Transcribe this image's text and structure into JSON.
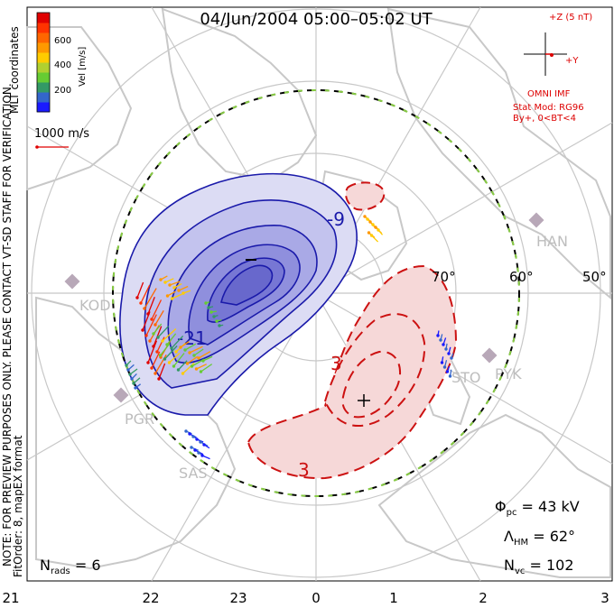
{
  "title": "04/Jun/2004 05:00–05:02 UT",
  "coordinates": "MLT coordinates",
  "colorbar": {
    "label": "Vel [m/s]",
    "ticks": [
      "600",
      "400",
      "200"
    ],
    "colors": [
      "#1a1aff",
      "#3366cc",
      "#339966",
      "#66cc33",
      "#b0d030",
      "#ffcc00",
      "#ff9900",
      "#ff6600",
      "#ff3300",
      "#e00000"
    ]
  },
  "vector_scale": "1000 m/s",
  "watermark": "NOTE: FOR PREVIEW PURPOSES ONLY. PLEASE CONTACT VT-SD STAFF FOR VERIFICATION.",
  "fit_note": "FitOrder: 8, mapEX format",
  "imf": {
    "z_label": "+Z (5 nT)",
    "y_label": "+Y",
    "source": "OMNI IMF",
    "model_line1": "Stat Mod: RG96",
    "model_line2": "By+, 0<BT<4"
  },
  "latitude_labels": [
    "70°",
    "60°",
    "50°"
  ],
  "stations": [
    "HAN",
    "KOD",
    "PYK",
    "STO",
    "PGR",
    "SAS"
  ],
  "contour_labels": [
    "-9",
    "-21",
    "3",
    "3"
  ],
  "stats": {
    "phi_symbol": "Φ",
    "phi_sub": "pc",
    "phi_value": " = 43 kV",
    "lambda_symbol": "Λ",
    "lambda_sub": "HM",
    "lambda_value": " = 62°",
    "nvc_symbol": "N",
    "nvc_sub": "vc",
    "nvc_value": " = 102",
    "nrads_symbol": "N",
    "nrads_sub": "rads",
    "nrads_value": " = 6"
  },
  "mlt_axis": [
    "21",
    "22",
    "23",
    "0",
    "1",
    "2",
    "3"
  ],
  "colors": {
    "negative_cell": "#1a1aaa",
    "positive_cell": "#cc1111",
    "boundary_dash": "#88cc44",
    "coast": "#c8c8c8",
    "imf_red": "#dd0000"
  }
}
